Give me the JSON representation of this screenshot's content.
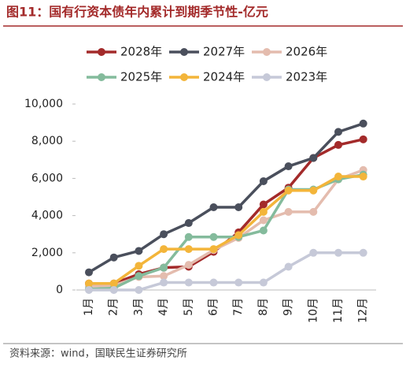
{
  "chart_data": {
    "type": "line",
    "title": "图11：国有行资本债年内累计到期季节性-亿元",
    "source": "资料来源：wind，国联民生证券研究所",
    "categories": [
      "1月",
      "2月",
      "3月",
      "4月",
      "5月",
      "6月",
      "7月",
      "8月",
      "9月",
      "10月",
      "11月",
      "12月"
    ],
    "series": [
      {
        "name": "2028年",
        "color": "#a32a2a",
        "values": [
          350,
          350,
          850,
          1200,
          1250,
          2050,
          3100,
          4600,
          5500,
          7100,
          7800,
          8100
        ]
      },
      {
        "name": "2027年",
        "color": "#4a4f5c",
        "values": [
          950,
          1750,
          2100,
          3000,
          3600,
          4450,
          4450,
          5850,
          6650,
          7100,
          8500,
          8950
        ]
      },
      {
        "name": "2026年",
        "color": "#e4bcae",
        "values": [
          200,
          250,
          700,
          750,
          1350,
          2150,
          2800,
          3750,
          4200,
          4200,
          5950,
          6450
        ]
      },
      {
        "name": "2025年",
        "color": "#84bb9c",
        "values": [
          50,
          100,
          750,
          1200,
          2850,
          2850,
          2850,
          3200,
          5400,
          5400,
          5950,
          6200
        ]
      },
      {
        "name": "2024年",
        "color": "#f3b53a",
        "values": [
          350,
          350,
          1300,
          2200,
          2200,
          2200,
          2950,
          4200,
          5350,
          5350,
          6100,
          6100
        ]
      },
      {
        "name": "2023年",
        "color": "#c6c9d8",
        "values": [
          0,
          0,
          0,
          400,
          400,
          400,
          400,
          400,
          1250,
          2000,
          2000,
          2000
        ]
      }
    ],
    "ylim": [
      0,
      10000
    ],
    "yticks": [
      0,
      {
        "value": 2000,
        "label": "2,000"
      },
      {
        "value": 4000,
        "label": "4,000"
      },
      {
        "value": 6000,
        "label": "6,000"
      },
      {
        "value": 8000,
        "label": "8,000"
      },
      {
        "value": 10000,
        "label": "10,000"
      }
    ],
    "grid": false
  }
}
